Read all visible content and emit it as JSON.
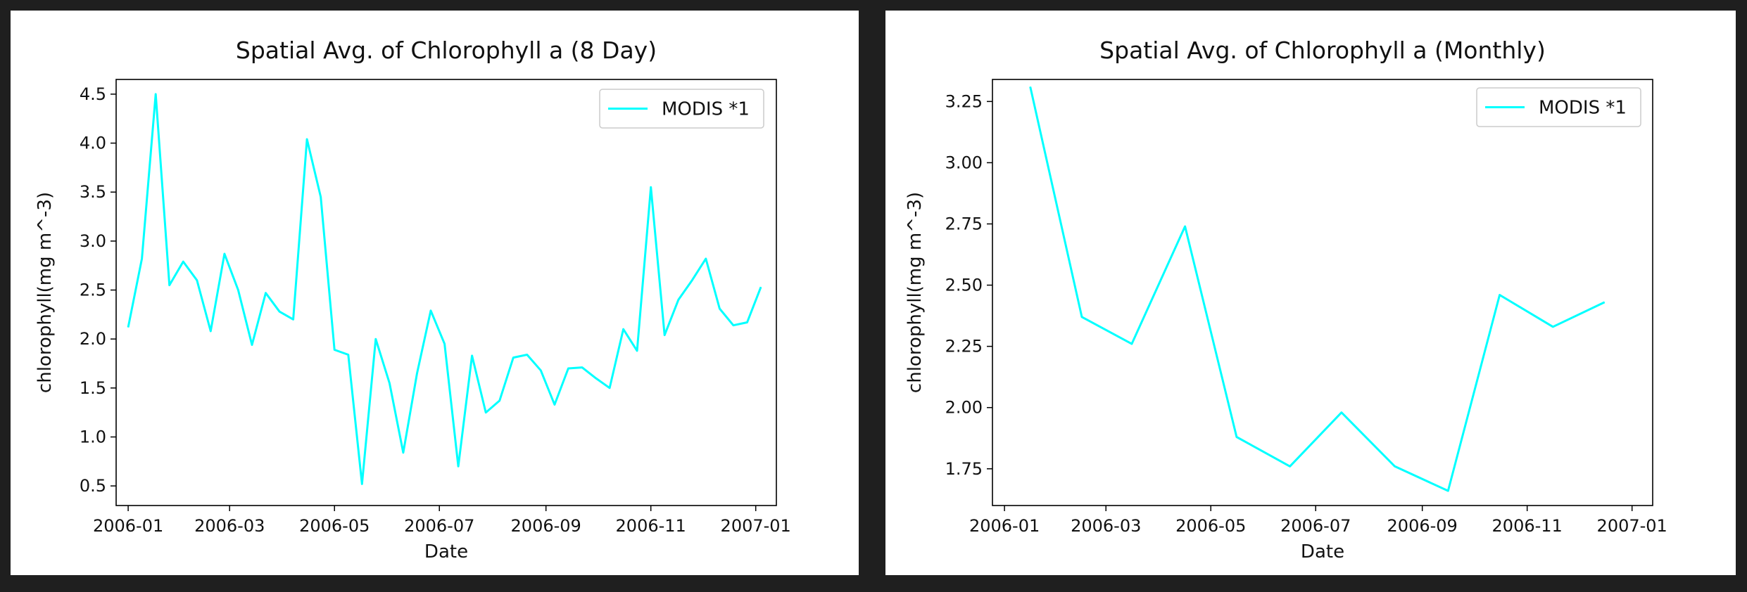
{
  "chart_data": [
    {
      "type": "line",
      "title": "Spatial Avg. of Chlorophyll a  (8 Day)",
      "xlabel": "Date",
      "ylabel": "chlorophyll(mg m^-3)",
      "x_ticks": [
        "2006-01",
        "2006-03",
        "2006-05",
        "2006-07",
        "2006-09",
        "2006-11",
        "2007-01"
      ],
      "y_ticks": [
        "0.5",
        "1.0",
        "1.5",
        "2.0",
        "2.5",
        "3.0",
        "3.5",
        "4.0",
        "4.5"
      ],
      "xlim": [
        "2005-12-25",
        "2007-01-13"
      ],
      "ylim": [
        0.3,
        4.65
      ],
      "legend_position": "top-right",
      "grid": false,
      "series": [
        {
          "name": "MODIS *1",
          "color": "#00ffff",
          "points": [
            [
              "2006-01-01",
              2.12
            ],
            [
              "2006-01-09",
              2.82
            ],
            [
              "2006-01-17",
              4.5
            ],
            [
              "2006-01-25",
              2.55
            ],
            [
              "2006-02-02",
              2.79
            ],
            [
              "2006-02-10",
              2.6
            ],
            [
              "2006-02-18",
              2.08
            ],
            [
              "2006-02-26",
              2.87
            ],
            [
              "2006-03-06",
              2.5
            ],
            [
              "2006-03-14",
              1.94
            ],
            [
              "2006-03-22",
              2.47
            ],
            [
              "2006-03-30",
              2.28
            ],
            [
              "2006-04-07",
              2.2
            ],
            [
              "2006-04-15",
              4.04
            ],
            [
              "2006-04-23",
              3.45
            ],
            [
              "2006-05-01",
              1.89
            ],
            [
              "2006-05-09",
              1.84
            ],
            [
              "2006-05-17",
              0.52
            ],
            [
              "2006-05-25",
              2.0
            ],
            [
              "2006-06-02",
              1.55
            ],
            [
              "2006-06-10",
              0.84
            ],
            [
              "2006-06-18",
              1.65
            ],
            [
              "2006-06-26",
              2.29
            ],
            [
              "2006-07-04",
              1.95
            ],
            [
              "2006-07-12",
              0.7
            ],
            [
              "2006-07-20",
              1.83
            ],
            [
              "2006-07-28",
              1.25
            ],
            [
              "2006-08-05",
              1.37
            ],
            [
              "2006-08-13",
              1.81
            ],
            [
              "2006-08-21",
              1.84
            ],
            [
              "2006-08-29",
              1.68
            ],
            [
              "2006-09-06",
              1.33
            ],
            [
              "2006-09-14",
              1.7
            ],
            [
              "2006-09-22",
              1.71
            ],
            [
              "2006-09-30",
              1.6
            ],
            [
              "2006-10-08",
              1.5
            ],
            [
              "2006-10-16",
              2.1
            ],
            [
              "2006-10-24",
              1.88
            ],
            [
              "2006-11-01",
              3.55
            ],
            [
              "2006-11-09",
              2.04
            ],
            [
              "2006-11-17",
              2.4
            ],
            [
              "2006-11-25",
              2.6
            ],
            [
              "2006-12-03",
              2.82
            ],
            [
              "2006-12-11",
              2.31
            ],
            [
              "2006-12-19",
              2.14
            ],
            [
              "2006-12-27",
              2.17
            ],
            [
              "2007-01-04",
              2.53
            ]
          ]
        }
      ]
    },
    {
      "type": "line",
      "title": "Spatial Avg. of Chlorophyll a  (Monthly)",
      "xlabel": "Date",
      "ylabel": "chlorophyll(mg m^-3)",
      "x_ticks": [
        "2006-01",
        "2006-03",
        "2006-05",
        "2006-07",
        "2006-09",
        "2006-11",
        "2007-01"
      ],
      "y_ticks": [
        "1.75",
        "2.00",
        "2.25",
        "2.50",
        "2.75",
        "3.00",
        "3.25"
      ],
      "xlim": [
        "2005-12-25",
        "2007-01-13"
      ],
      "ylim": [
        1.6,
        3.34
      ],
      "legend_position": "top-right",
      "grid": false,
      "series": [
        {
          "name": "MODIS *1",
          "color": "#00ffff",
          "points": [
            [
              "2006-01-16",
              3.31
            ],
            [
              "2006-02-15",
              2.37
            ],
            [
              "2006-03-16",
              2.26
            ],
            [
              "2006-04-16",
              2.74
            ],
            [
              "2006-05-16",
              1.88
            ],
            [
              "2006-06-16",
              1.76
            ],
            [
              "2006-07-16",
              1.98
            ],
            [
              "2006-08-16",
              1.76
            ],
            [
              "2006-09-16",
              1.66
            ],
            [
              "2006-10-16",
              2.46
            ],
            [
              "2006-11-16",
              2.33
            ],
            [
              "2006-12-16",
              2.43
            ]
          ]
        }
      ]
    }
  ]
}
